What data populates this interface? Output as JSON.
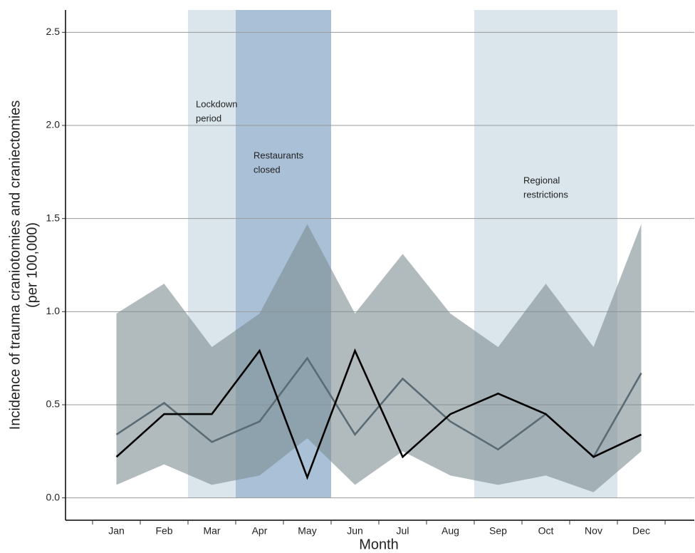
{
  "chart_data": {
    "type": "line",
    "x_label": "Month",
    "y_label": [
      "Incidence of trauma craniotomies and craniectomies",
      "(per 100,000)"
    ],
    "categories": [
      "Jan",
      "Feb",
      "Mar",
      "Apr",
      "May",
      "Jun",
      "Jul",
      "Aug",
      "Sep",
      "Oct",
      "Nov",
      "Dec"
    ],
    "series": [
      {
        "color": "#5b6b73",
        "values": [
          0.34,
          0.51,
          0.3,
          0.41,
          0.75,
          0.34,
          0.64,
          0.41,
          0.26,
          0.45,
          0.22,
          0.67
        ]
      },
      {
        "color": "#000000",
        "values": [
          0.22,
          0.45,
          0.45,
          0.79,
          0.11,
          0.79,
          0.22,
          0.45,
          0.56,
          0.45,
          0.22,
          0.34
        ]
      }
    ],
    "band": {
      "color": "#7d8d92",
      "upper": [
        0.99,
        1.15,
        0.81,
        0.99,
        1.47,
        0.99,
        1.31,
        0.99,
        0.81,
        1.15,
        0.81,
        1.47
      ],
      "lower": [
        0.07,
        0.18,
        0.07,
        0.12,
        0.32,
        0.07,
        0.25,
        0.12,
        0.07,
        0.12,
        0.03,
        0.25
      ]
    },
    "periods": [
      {
        "label": [
          "Lockdown",
          "period"
        ],
        "start": "Mar",
        "end": "Mar",
        "color": "#dbe6ec"
      },
      {
        "label": [
          "Restaurants",
          "closed"
        ],
        "start": "Apr",
        "end": "May",
        "color": "#a9c0d6"
      },
      {
        "label": [
          "Regional",
          "restrictions"
        ],
        "start": "Sep",
        "end": "Nov",
        "color": "#dbe6ec"
      }
    ],
    "ylim": [
      -0.12,
      2.62
    ],
    "yticks": [
      {
        "value": 0,
        "label": "0.0"
      },
      0.5,
      {
        "value": 1,
        "label": "1.0"
      },
      1.5,
      {
        "value": 2,
        "label": "2.0"
      },
      2.5
    ],
    "grid": true
  }
}
